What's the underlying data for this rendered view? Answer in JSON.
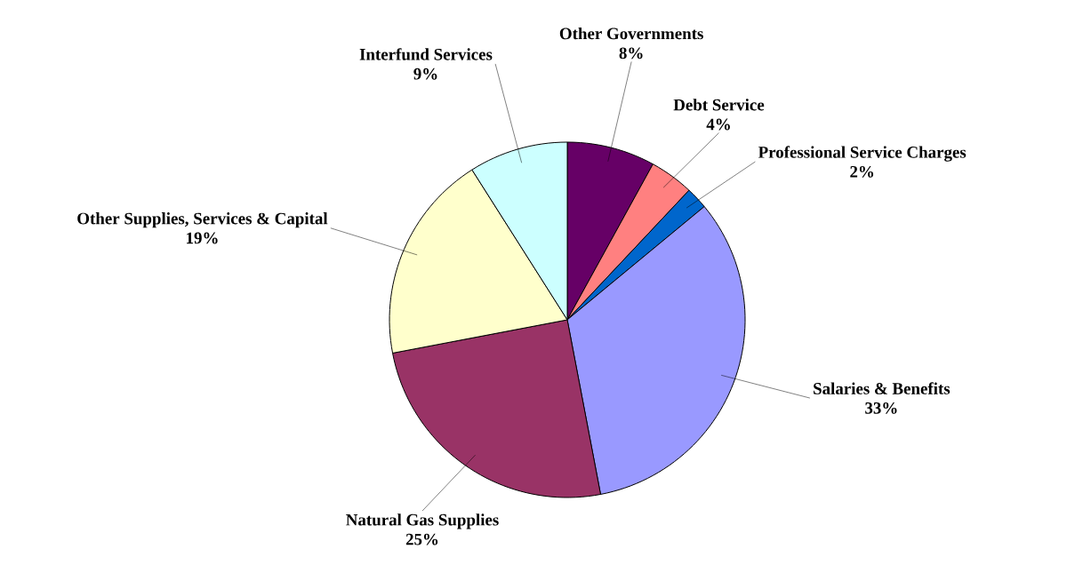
{
  "chart_data": {
    "type": "pie",
    "categories": [
      "Other Governments",
      "Debt Service",
      "Professional Service Charges",
      "Salaries & Benefits",
      "Natural Gas Supplies",
      "Other Supplies, Services & Capital",
      "Interfund Services"
    ],
    "values": [
      8,
      4,
      2,
      33,
      25,
      19,
      9
    ],
    "value_labels": [
      "8%",
      "4%",
      "2%",
      "33%",
      "25%",
      "19%",
      "9%"
    ],
    "colors": [
      "#660066",
      "#ff8080",
      "#0066cc",
      "#9999ff",
      "#993366",
      "#ffffcc",
      "#ccffff"
    ]
  }
}
